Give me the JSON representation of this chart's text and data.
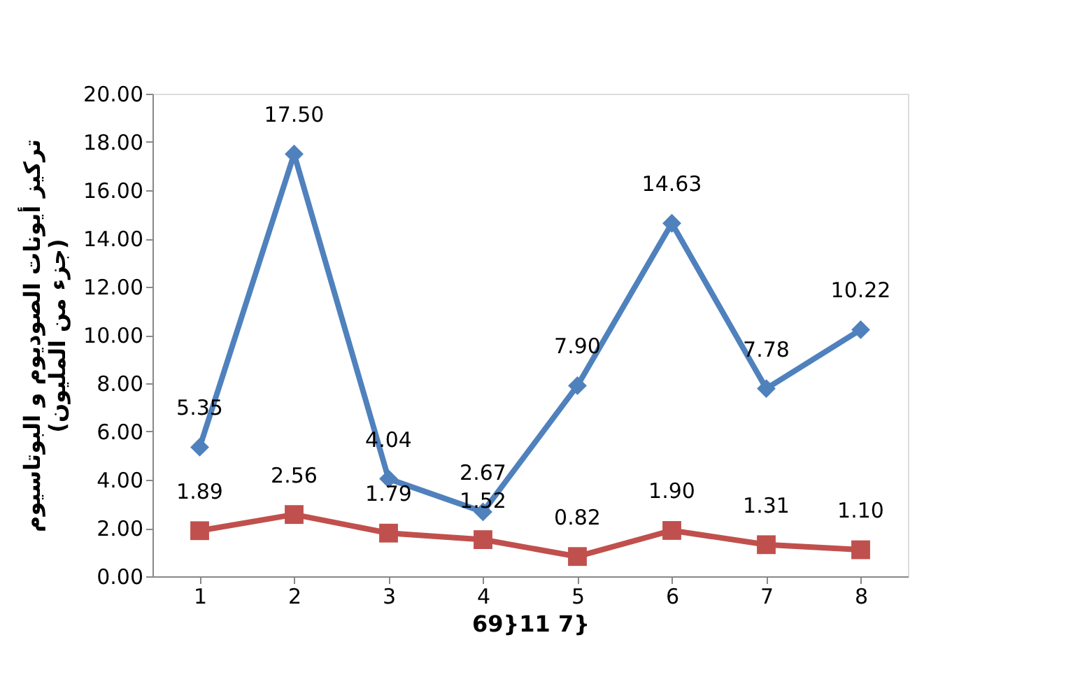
{
  "chart_data": {
    "type": "line",
    "categories": [
      "1",
      "2",
      "3",
      "4",
      "5",
      "6",
      "7",
      "8"
    ],
    "series": [
      {
        "color": "#4f81bd",
        "marker": "diamond",
        "values": [
          5.35,
          17.5,
          4.04,
          2.67,
          7.9,
          14.63,
          7.78,
          10.22
        ],
        "value_labels": [
          "5.35",
          "17.50",
          "4.04",
          "2.67",
          "7.90",
          "14.63",
          "7.78",
          "10.22"
        ]
      },
      {
        "color": "#c0504d",
        "marker": "square",
        "values": [
          1.89,
          2.56,
          1.79,
          1.52,
          0.82,
          1.9,
          1.31,
          1.1
        ],
        "value_labels": [
          "1.89",
          "2.56",
          "1.79",
          "1.52",
          "0.82",
          "1.90",
          "1.31",
          "1.10"
        ]
      }
    ],
    "ylabel": "تركيز أيونات الصوديوم و البوتاسيوم\n(جزء من المليون)",
    "xlabel": "69}11 7}",
    "ylim": [
      0,
      20
    ],
    "yticks": [
      {
        "value": 0,
        "label": "0.00"
      },
      {
        "value": 2,
        "label": "2.00"
      },
      {
        "value": 4,
        "label": "4.00"
      },
      {
        "value": 6,
        "label": "6.00"
      },
      {
        "value": 8,
        "label": "8.00"
      },
      {
        "value": 10,
        "label": "10.00"
      },
      {
        "value": 12,
        "label": "12.00"
      },
      {
        "value": 14,
        "label": "14.00"
      },
      {
        "value": 16,
        "label": "16.00"
      },
      {
        "value": 18,
        "label": "18.00"
      },
      {
        "value": 20,
        "label": "20.00"
      }
    ],
    "grid": false,
    "legend": false,
    "line_style": "solid"
  }
}
